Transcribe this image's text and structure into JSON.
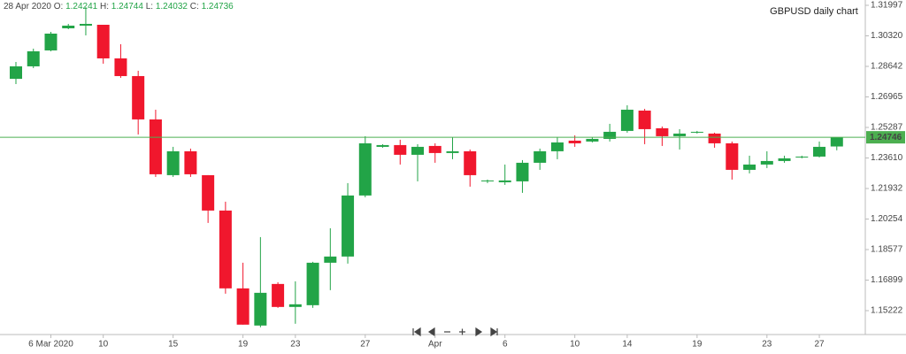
{
  "chart_data": {
    "type": "candlestick",
    "title": "GBPUSD daily chart",
    "header": {
      "date": "28 Apr 2020",
      "fields": [
        {
          "label": "O:",
          "value": 1.24241
        },
        {
          "label": "H:",
          "value": 1.24744
        },
        {
          "label": "L:",
          "value": 1.24032
        },
        {
          "label": "C:",
          "value": 1.24736
        }
      ]
    },
    "categories": [
      null,
      null,
      "6 Mar 2020",
      null,
      null,
      "10",
      null,
      null,
      null,
      "15",
      null,
      null,
      null,
      "19",
      null,
      null,
      "23",
      null,
      null,
      null,
      "27",
      null,
      null,
      null,
      "Apr",
      null,
      null,
      null,
      "6",
      null,
      null,
      null,
      "10",
      null,
      null,
      "14",
      null,
      null,
      null,
      "19",
      null,
      null,
      null,
      "23",
      null,
      null,
      "27",
      null
    ],
    "open": [
      1.27957,
      1.28644,
      1.29519,
      1.30734,
      1.3088,
      1.30928,
      1.29081,
      1.28109,
      1.25728,
      1.22665,
      1.23977,
      1.22665,
      1.20721,
      1.16445,
      1.14403,
      1.16687,
      1.15424,
      1.15521,
      1.17854,
      1.18194,
      1.21548,
      1.24221,
      1.24318,
      1.23784,
      1.2427,
      1.23881,
      1.23977,
      1.22325,
      1.22276,
      1.22325,
      1.23346,
      1.23978,
      1.24561,
      1.24513,
      1.24658,
      1.25096,
      1.26213,
      1.25242,
      1.24804,
      1.25001,
      1.2495,
      1.24415,
      1.22957,
      1.23249,
      1.23443,
      1.23638,
      1.23686,
      1.24241
    ],
    "high": [
      1.28887,
      1.29616,
      1.30539,
      1.30977,
      1.319,
      1.30928,
      1.29859,
      1.28401,
      1.26262,
      1.24221,
      1.24124,
      1.22665,
      1.21207,
      1.17854,
      1.19262,
      1.16784,
      1.16833,
      1.17903,
      1.19749,
      1.22228,
      1.24804,
      1.24367,
      1.2461,
      1.24367,
      1.24415,
      1.24755,
      1.24075,
      1.22422,
      1.23249,
      1.23492,
      1.24124,
      1.24755,
      1.24853,
      1.24755,
      1.25485,
      1.26505,
      1.2631,
      1.25339,
      1.25193,
      1.25096,
      1.24999,
      1.24513,
      1.23735,
      1.23978,
      1.23735,
      1.23735,
      1.24513,
      1.24744
    ],
    "low": [
      1.27671,
      1.28547,
      1.2947,
      1.30685,
      1.30345,
      1.2879,
      1.28012,
      1.24901,
      1.22568,
      1.22568,
      1.22568,
      1.20041,
      1.16153,
      1.14452,
      1.14306,
      1.15375,
      1.14501,
      1.15375,
      1.16347,
      1.17806,
      1.21451,
      1.24172,
      1.23249,
      1.22325,
      1.23346,
      1.2354,
      1.22034,
      1.22228,
      1.22131,
      1.21694,
      1.22957,
      1.2354,
      1.24221,
      1.24464,
      1.24513,
      1.24999,
      1.24367,
      1.2427,
      1.24075,
      1.2495,
      1.24172,
      1.22422,
      1.22762,
      1.23054,
      1.23346,
      1.23589,
      1.23638,
      1.24032
    ],
    "close": [
      1.28644,
      1.2947,
      1.30442,
      1.3088,
      1.30977,
      1.29081,
      1.28109,
      1.25728,
      1.22714,
      1.23977,
      1.22714,
      1.20721,
      1.16445,
      1.14452,
      1.16201,
      1.15424,
      1.1557,
      1.17854,
      1.18194,
      1.21548,
      1.24415,
      1.24318,
      1.23784,
      1.24221,
      1.23881,
      1.23977,
      1.22665,
      1.22374,
      1.22374,
      1.23346,
      1.23978,
      1.24464,
      1.24415,
      1.24658,
      1.25047,
      1.26262,
      1.25193,
      1.24804,
      1.2495,
      1.25047,
      1.24415,
      1.22957,
      1.23249,
      1.23443,
      1.23589,
      1.23686,
      1.24221,
      1.24736
    ],
    "up_color": "#22a447",
    "down_color": "#f0172d",
    "last_price": 1.24746,
    "last_price_color": "#4caf50",
    "ylim": [
      1.13909,
      1.32289
    ],
    "yticks": [
      1.31997,
      {
        "value": 1.3032,
        "label": "1.30320"
      },
      1.28642,
      1.26965,
      1.25287,
      {
        "value": 1.2361,
        "label": "1.23610"
      },
      1.21932,
      1.20254,
      1.18577,
      1.16899,
      1.15222
    ]
  }
}
